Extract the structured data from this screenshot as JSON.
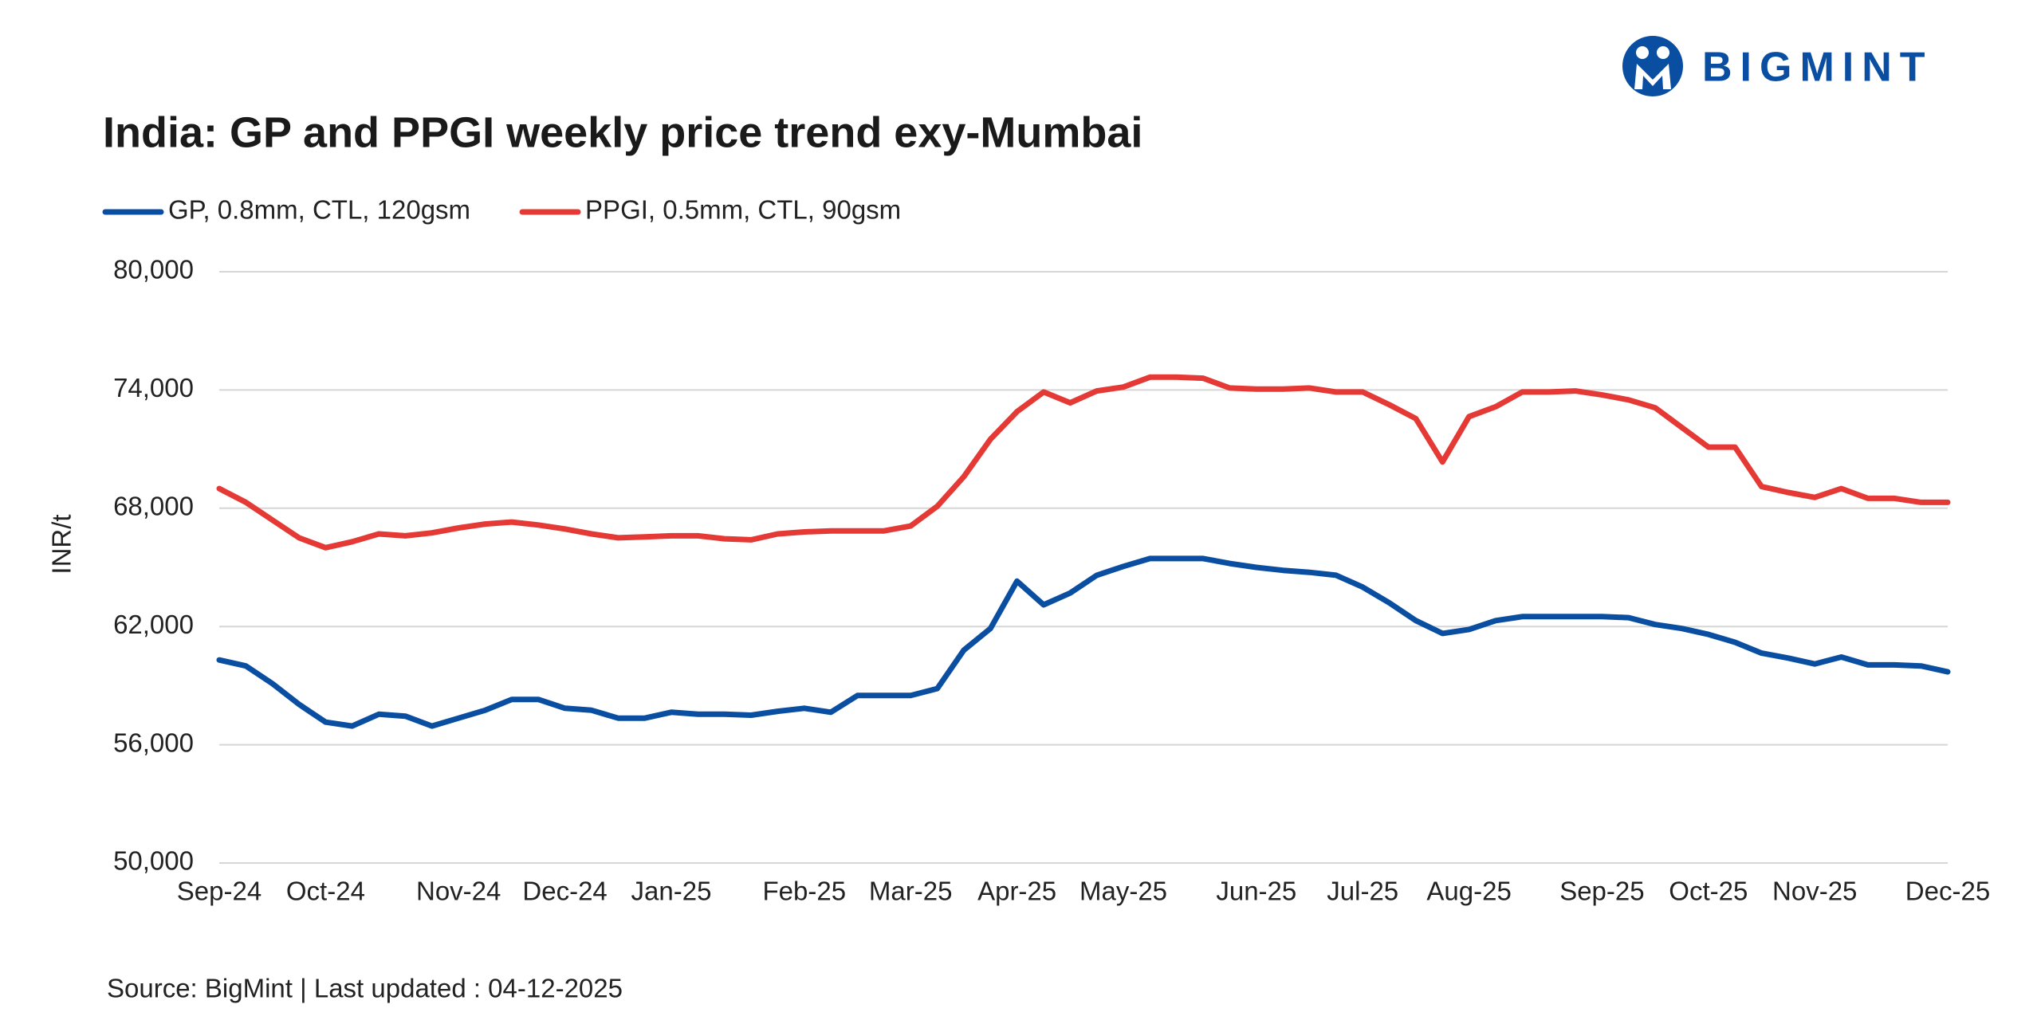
{
  "brand": "BIGMINT",
  "chart_data": {
    "type": "line",
    "title": "India: GP and PPGI weekly price trend exy-Mumbai",
    "y_label": "INR/t",
    "source": "Source: BigMint | Last updated : 04-12-2025",
    "legend": "top-left",
    "grid": true,
    "ylim": [
      50000,
      80000
    ],
    "yticks": [
      {
        "value": 50000,
        "label": "50,000"
      },
      {
        "value": 56000,
        "label": "56,000"
      },
      {
        "value": 62000,
        "label": "62,000"
      },
      {
        "value": 68000,
        "label": "68,000"
      },
      {
        "value": 74000,
        "label": "74,000"
      },
      {
        "value": 80000,
        "label": "80,000"
      }
    ],
    "categories": [
      "Sep-24",
      null,
      null,
      null,
      "Oct-24",
      null,
      null,
      null,
      null,
      "Nov-24",
      null,
      null,
      null,
      "Dec-24",
      null,
      null,
      null,
      "Jan-25",
      null,
      null,
      null,
      null,
      "Feb-25",
      null,
      null,
      null,
      "Mar-25",
      null,
      null,
      null,
      "Apr-25",
      null,
      null,
      null,
      "May-25",
      null,
      null,
      null,
      null,
      "Jun-25",
      null,
      null,
      null,
      "Jul-25",
      null,
      null,
      null,
      "Aug-25",
      null,
      null,
      null,
      null,
      "Sep-25",
      null,
      null,
      null,
      "Oct-25",
      null,
      null,
      null,
      "Nov-25",
      null,
      null,
      null,
      null,
      "Dec-25"
    ],
    "series": [
      {
        "name": "GP, 0.8mm, CTL, 120gsm",
        "color": "#0a4ea2",
        "values": [
          60300,
          60000,
          59100,
          58050,
          57150,
          56950,
          57550,
          57450,
          56950,
          57350,
          57750,
          58300,
          58300,
          57850,
          57750,
          57350,
          57350,
          57650,
          57550,
          57550,
          57500,
          57700,
          57850,
          57650,
          58500,
          58500,
          58500,
          58850,
          60800,
          61900,
          64300,
          63100,
          63700,
          64600,
          65050,
          65450,
          65450,
          65450,
          65200,
          65000,
          64850,
          64750,
          64600,
          64000,
          63200,
          62300,
          61650,
          61850,
          62300,
          62500,
          62500,
          62500,
          62500,
          62450,
          62100,
          61900,
          61600,
          61200,
          60650,
          60400,
          60100,
          60450,
          60050,
          60050,
          60000,
          59700
        ]
      },
      {
        "name": "PPGI, 0.5mm, CTL, 90gsm",
        "color": "#e53935",
        "values": [
          69000,
          68300,
          67400,
          66500,
          66000,
          66300,
          66700,
          66600,
          66750,
          67000,
          67200,
          67300,
          67150,
          66950,
          66700,
          66500,
          66550,
          66600,
          66600,
          66450,
          66400,
          66700,
          66800,
          66850,
          66850,
          66850,
          67100,
          68100,
          69600,
          71500,
          72900,
          73900,
          73350,
          73950,
          74150,
          74650,
          74650,
          74600,
          74100,
          74050,
          74050,
          74100,
          73900,
          73900,
          73250,
          72550,
          70350,
          72650,
          73150,
          73900,
          73900,
          73950,
          73750,
          73500,
          73100,
          72100,
          71100,
          71100,
          69100,
          68800,
          68550,
          69000,
          68500,
          68500,
          68300,
          68300
        ]
      }
    ]
  }
}
